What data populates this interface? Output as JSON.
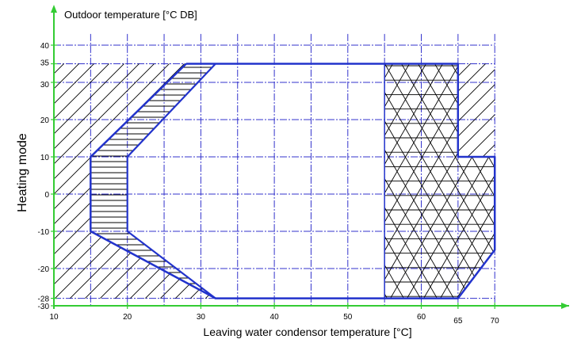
{
  "chart_data": {
    "type": "area",
    "title": "Heating mode",
    "ylabel": "Outdoor temperature [°C DB]",
    "xlabel": "Leaving water condensor temperature [°C]",
    "xlim": [
      10,
      70
    ],
    "ylim": [
      -30,
      43
    ],
    "x_ticks": [
      {
        "value": 10,
        "label": "10"
      },
      {
        "value": 20,
        "label": "20"
      },
      {
        "value": 30,
        "label": "30"
      },
      {
        "value": 40,
        "label": "40"
      },
      {
        "value": 50,
        "label": "50"
      },
      {
        "value": 60,
        "label": "60"
      },
      {
        "value": 65,
        "label": "65"
      },
      {
        "value": 70,
        "label": "70"
      }
    ],
    "y_ticks": [
      {
        "value": 40,
        "label": "40"
      },
      {
        "value": 35,
        "label": "35"
      },
      {
        "value": 30,
        "label": "30"
      },
      {
        "value": 20,
        "label": "20"
      },
      {
        "value": 10,
        "label": "10"
      },
      {
        "value": 0,
        "label": "0"
      },
      {
        "value": -10,
        "label": "-10"
      },
      {
        "value": -20,
        "label": "-20"
      },
      {
        "value": -28,
        "label": "-28"
      },
      {
        "value": -30,
        "label": "-30"
      }
    ],
    "grid": true,
    "operating_envelope": [
      [
        28,
        35
      ],
      [
        65,
        35
      ],
      [
        65,
        10
      ],
      [
        70,
        10
      ],
      [
        70,
        -15
      ],
      [
        65,
        -28
      ],
      [
        32,
        -28
      ],
      [
        15,
        -10
      ],
      [
        15,
        10
      ],
      [
        28,
        35
      ]
    ],
    "regions": [
      {
        "pattern": "horizontal-hatch",
        "polygons": [
          [
            [
              28,
              35
            ],
            [
              32,
              35
            ],
            [
              20,
              10
            ],
            [
              20,
              -10
            ],
            [
              32,
              -28
            ],
            [
              15,
              -10
            ],
            [
              15,
              10
            ]
          ]
        ]
      },
      {
        "pattern": "triangular-hatch",
        "polygons": [
          [
            [
              55,
              35
            ],
            [
              65,
              35
            ],
            [
              65,
              10
            ],
            [
              70,
              10
            ],
            [
              70,
              -15
            ],
            [
              65,
              -28
            ],
            [
              55,
              -28
            ]
          ]
        ]
      },
      {
        "pattern": "diagonal-hatch",
        "polygons": [
          [
            [
              10,
              35
            ],
            [
              28,
              35
            ],
            [
              15,
              10
            ],
            [
              15,
              -10
            ],
            [
              32,
              -28
            ],
            [
              10,
              -28
            ]
          ],
          [
            [
              65,
              35
            ],
            [
              70,
              35
            ],
            [
              70,
              10
            ],
            [
              65,
              10
            ]
          ]
        ]
      }
    ],
    "colors": {
      "axis": "#33cc33",
      "grid": "#3333cc",
      "envelope": "#2233cc",
      "hatch": "#000000",
      "text": "#000000"
    }
  }
}
